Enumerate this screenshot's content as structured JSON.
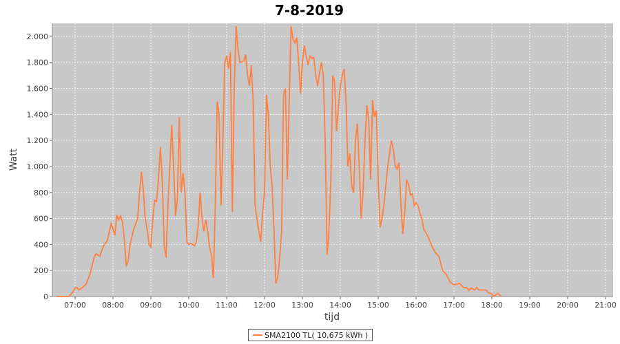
{
  "chart_data": {
    "type": "line",
    "title": "7-8-2019",
    "xlabel": "tijd",
    "ylabel": "Watt",
    "xlim": [
      "06:24",
      "21:12"
    ],
    "ylim": [
      0,
      2100
    ],
    "x_ticks": [
      "07:00",
      "08:00",
      "09:00",
      "10:00",
      "11:00",
      "12:00",
      "13:00",
      "14:00",
      "15:00",
      "16:00",
      "17:00",
      "18:00",
      "19:00",
      "20:00",
      "21:00"
    ],
    "y_ticks": [
      {
        "value": 0,
        "label": "0"
      },
      {
        "value": 200,
        "label": "200"
      },
      {
        "value": 400,
        "label": "400"
      },
      {
        "value": 600,
        "label": "600"
      },
      {
        "value": 800,
        "label": "800"
      },
      {
        "value": 1000,
        "label": "1.000"
      },
      {
        "value": 1200,
        "label": "1.200"
      },
      {
        "value": 1400,
        "label": "1.400"
      },
      {
        "value": 1600,
        "label": "1.600"
      },
      {
        "value": 1800,
        "label": "1.800"
      },
      {
        "value": 2000,
        "label": "2.000"
      }
    ],
    "grid": true,
    "background": "#c8c8c8",
    "legend_position": "bottom",
    "series": [
      {
        "name": "SMA2100 TL( 10,675 kWh )",
        "color": "#ff7f3f",
        "points": [
          [
            "06:30",
            0
          ],
          [
            "06:50",
            0
          ],
          [
            "06:56",
            30
          ],
          [
            "07:00",
            65
          ],
          [
            "07:03",
            70
          ],
          [
            "07:06",
            50
          ],
          [
            "07:12",
            70
          ],
          [
            "07:18",
            100
          ],
          [
            "07:24",
            180
          ],
          [
            "07:30",
            300
          ],
          [
            "07:33",
            330
          ],
          [
            "07:39",
            310
          ],
          [
            "07:45",
            390
          ],
          [
            "07:51",
            430
          ],
          [
            "07:57",
            560
          ],
          [
            "08:00",
            520
          ],
          [
            "08:03",
            470
          ],
          [
            "08:06",
            630
          ],
          [
            "08:09",
            590
          ],
          [
            "08:12",
            620
          ],
          [
            "08:15",
            570
          ],
          [
            "08:18",
            440
          ],
          [
            "08:21",
            240
          ],
          [
            "08:24",
            270
          ],
          [
            "08:27",
            400
          ],
          [
            "08:33",
            520
          ],
          [
            "08:39",
            600
          ],
          [
            "08:42",
            800
          ],
          [
            "08:45",
            960
          ],
          [
            "08:48",
            820
          ],
          [
            "08:51",
            600
          ],
          [
            "08:54",
            520
          ],
          [
            "08:57",
            400
          ],
          [
            "09:00",
            380
          ],
          [
            "09:03",
            600
          ],
          [
            "09:06",
            740
          ],
          [
            "09:09",
            730
          ],
          [
            "09:12",
            900
          ],
          [
            "09:15",
            1150
          ],
          [
            "09:18",
            900
          ],
          [
            "09:21",
            400
          ],
          [
            "09:24",
            300
          ],
          [
            "09:27",
            700
          ],
          [
            "09:30",
            1000
          ],
          [
            "09:33",
            1320
          ],
          [
            "09:36",
            1000
          ],
          [
            "09:39",
            620
          ],
          [
            "09:42",
            750
          ],
          [
            "09:45",
            1380
          ],
          [
            "09:48",
            800
          ],
          [
            "09:51",
            950
          ],
          [
            "09:54",
            800
          ],
          [
            "09:57",
            420
          ],
          [
            "10:00",
            400
          ],
          [
            "10:03",
            410
          ],
          [
            "10:06",
            400
          ],
          [
            "10:09",
            390
          ],
          [
            "10:12",
            420
          ],
          [
            "10:15",
            550
          ],
          [
            "10:18",
            800
          ],
          [
            "10:21",
            600
          ],
          [
            "10:24",
            500
          ],
          [
            "10:27",
            590
          ],
          [
            "10:30",
            500
          ],
          [
            "10:33",
            380
          ],
          [
            "10:36",
            320
          ],
          [
            "10:39",
            140
          ],
          [
            "10:42",
            700
          ],
          [
            "10:45",
            1500
          ],
          [
            "10:48",
            1400
          ],
          [
            "10:51",
            700
          ],
          [
            "10:54",
            1200
          ],
          [
            "10:57",
            1800
          ],
          [
            "11:00",
            1850
          ],
          [
            "11:03",
            1750
          ],
          [
            "11:06",
            1880
          ],
          [
            "11:09",
            650
          ],
          [
            "11:12",
            1600
          ],
          [
            "11:15",
            2080
          ],
          [
            "11:18",
            1900
          ],
          [
            "11:21",
            1800
          ],
          [
            "11:27",
            1810
          ],
          [
            "11:30",
            1860
          ],
          [
            "11:33",
            1700
          ],
          [
            "11:36",
            1620
          ],
          [
            "11:39",
            1780
          ],
          [
            "11:42",
            1500
          ],
          [
            "11:45",
            700
          ],
          [
            "11:48",
            600
          ],
          [
            "11:51",
            500
          ],
          [
            "11:54",
            420
          ],
          [
            "11:57",
            650
          ],
          [
            "12:00",
            800
          ],
          [
            "12:03",
            1550
          ],
          [
            "12:06",
            1400
          ],
          [
            "12:09",
            1000
          ],
          [
            "12:12",
            850
          ],
          [
            "12:15",
            500
          ],
          [
            "12:18",
            100
          ],
          [
            "12:21",
            150
          ],
          [
            "12:24",
            300
          ],
          [
            "12:27",
            500
          ],
          [
            "12:30",
            1550
          ],
          [
            "12:33",
            1600
          ],
          [
            "12:36",
            900
          ],
          [
            "12:39",
            1500
          ],
          [
            "12:42",
            2080
          ],
          [
            "12:45",
            1980
          ],
          [
            "12:48",
            1950
          ],
          [
            "12:51",
            1990
          ],
          [
            "12:54",
            1800
          ],
          [
            "12:57",
            1560
          ],
          [
            "13:00",
            1800
          ],
          [
            "13:03",
            1930
          ],
          [
            "13:06",
            1850
          ],
          [
            "13:09",
            1780
          ],
          [
            "13:12",
            1850
          ],
          [
            "13:15",
            1830
          ],
          [
            "13:18",
            1840
          ],
          [
            "13:21",
            1700
          ],
          [
            "13:24",
            1620
          ],
          [
            "13:27",
            1720
          ],
          [
            "13:30",
            1800
          ],
          [
            "13:33",
            1700
          ],
          [
            "13:36",
            1200
          ],
          [
            "13:39",
            320
          ],
          [
            "13:42",
            500
          ],
          [
            "13:45",
            900
          ],
          [
            "13:48",
            1700
          ],
          [
            "13:51",
            1650
          ],
          [
            "13:54",
            1270
          ],
          [
            "13:57",
            1450
          ],
          [
            "14:00",
            1620
          ],
          [
            "14:03",
            1700
          ],
          [
            "14:06",
            1750
          ],
          [
            "14:09",
            1500
          ],
          [
            "14:12",
            1000
          ],
          [
            "14:15",
            1100
          ],
          [
            "14:18",
            850
          ],
          [
            "14:21",
            800
          ],
          [
            "14:24",
            1200
          ],
          [
            "14:27",
            1330
          ],
          [
            "14:30",
            1000
          ],
          [
            "14:33",
            600
          ],
          [
            "14:36",
            800
          ],
          [
            "14:39",
            1200
          ],
          [
            "14:42",
            1470
          ],
          [
            "14:45",
            1350
          ],
          [
            "14:48",
            900
          ],
          [
            "14:51",
            1510
          ],
          [
            "14:54",
            1380
          ],
          [
            "14:57",
            1430
          ],
          [
            "15:00",
            900
          ],
          [
            "15:03",
            530
          ],
          [
            "15:06",
            600
          ],
          [
            "15:09",
            700
          ],
          [
            "15:12",
            850
          ],
          [
            "15:15",
            1000
          ],
          [
            "15:18",
            1100
          ],
          [
            "15:21",
            1200
          ],
          [
            "15:24",
            1130
          ],
          [
            "15:27",
            1000
          ],
          [
            "15:30",
            980
          ],
          [
            "15:33",
            1030
          ],
          [
            "15:36",
            700
          ],
          [
            "15:39",
            480
          ],
          [
            "15:42",
            650
          ],
          [
            "15:45",
            900
          ],
          [
            "15:48",
            860
          ],
          [
            "15:51",
            780
          ],
          [
            "15:54",
            790
          ],
          [
            "15:57",
            700
          ],
          [
            "16:00",
            720
          ],
          [
            "16:03",
            700
          ],
          [
            "16:06",
            640
          ],
          [
            "16:09",
            600
          ],
          [
            "16:12",
            520
          ],
          [
            "16:18",
            470
          ],
          [
            "16:24",
            400
          ],
          [
            "16:30",
            340
          ],
          [
            "16:36",
            310
          ],
          [
            "16:42",
            200
          ],
          [
            "16:48",
            170
          ],
          [
            "16:54",
            110
          ],
          [
            "17:00",
            90
          ],
          [
            "17:09",
            100
          ],
          [
            "17:15",
            70
          ],
          [
            "17:21",
            65
          ],
          [
            "17:24",
            45
          ],
          [
            "17:27",
            65
          ],
          [
            "17:33",
            50
          ],
          [
            "17:36",
            70
          ],
          [
            "17:39",
            50
          ],
          [
            "17:45",
            50
          ],
          [
            "17:51",
            50
          ],
          [
            "17:54",
            30
          ],
          [
            "18:00",
            20
          ],
          [
            "18:03",
            0
          ],
          [
            "18:09",
            25
          ],
          [
            "18:15",
            0
          ]
        ]
      }
    ]
  }
}
